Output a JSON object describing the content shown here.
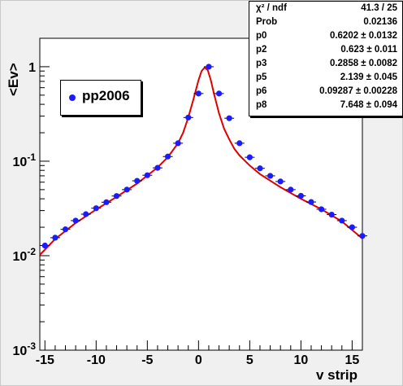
{
  "stats": {
    "rows": [
      {
        "key": "χ² / ndf",
        "value": "41.3 / 25"
      },
      {
        "key": "Prob",
        "value": "0.02136"
      },
      {
        "key": "p0",
        "value": "0.6202 ± 0.0132"
      },
      {
        "key": "p2",
        "value": "0.623 ± 0.011"
      },
      {
        "key": "p3",
        "value": "0.2858 ± 0.0082"
      },
      {
        "key": "p5",
        "value": "2.139 ± 0.045"
      },
      {
        "key": "p6",
        "value": "0.09287 ± 0.00228"
      },
      {
        "key": "p8",
        "value": "7.648 ± 0.094"
      }
    ]
  },
  "legend": {
    "label": "pp2006"
  },
  "colors": {
    "points": "#1b1bff",
    "fit": "#e00000",
    "frame": "#000000",
    "background": "#f0f0f0"
  },
  "chart_data": {
    "type": "scatter",
    "title": "",
    "xlabel": "v strip",
    "ylabel": "<Ev>",
    "y_scale": "log",
    "xlim": [
      -15.5,
      16
    ],
    "ylim": [
      0.001,
      2
    ],
    "x_ticks": [
      -15,
      -10,
      -5,
      0,
      5,
      10,
      15
    ],
    "y_ticks": [
      {
        "value": 0.001,
        "label": "10-3"
      },
      {
        "value": 0.01,
        "label": "10-2"
      },
      {
        "value": 0.1,
        "label": "10-1"
      },
      {
        "value": 1,
        "label": "1"
      }
    ],
    "series": [
      {
        "name": "pp2006",
        "x": [
          -15,
          -14,
          -13,
          -12,
          -11,
          -10,
          -9,
          -8,
          -7,
          -6,
          -5,
          -4,
          -3,
          -2,
          -1,
          0,
          1,
          2,
          3,
          4,
          5,
          6,
          7,
          8,
          9,
          10,
          11,
          12,
          13,
          14,
          15,
          16
        ],
        "y": [
          0.0128,
          0.0155,
          0.019,
          0.0235,
          0.0275,
          0.0318,
          0.0368,
          0.0428,
          0.05,
          0.062,
          0.071,
          0.085,
          0.112,
          0.155,
          0.29,
          0.52,
          1.0,
          0.52,
          0.285,
          0.155,
          0.11,
          0.084,
          0.07,
          0.061,
          0.05,
          0.043,
          0.037,
          0.031,
          0.0272,
          0.0235,
          0.02,
          0.0162
        ]
      }
    ],
    "fit": {
      "name": "fit",
      "x": [
        -15.5,
        -14,
        -12,
        -10,
        -8,
        -6,
        -4,
        -3,
        -2,
        -1.5,
        -1,
        -0.5,
        0,
        0.3,
        0.6,
        0.9,
        1.2,
        1.5,
        2,
        2.5,
        3,
        3.5,
        4,
        5,
        6,
        8,
        10,
        12,
        14,
        16
      ],
      "y": [
        0.0102,
        0.015,
        0.0222,
        0.0308,
        0.042,
        0.058,
        0.086,
        0.11,
        0.155,
        0.2,
        0.29,
        0.45,
        0.72,
        0.9,
        0.98,
        0.92,
        0.72,
        0.52,
        0.32,
        0.22,
        0.17,
        0.135,
        0.115,
        0.09,
        0.073,
        0.053,
        0.04,
        0.031,
        0.023,
        0.0152
      ]
    }
  }
}
